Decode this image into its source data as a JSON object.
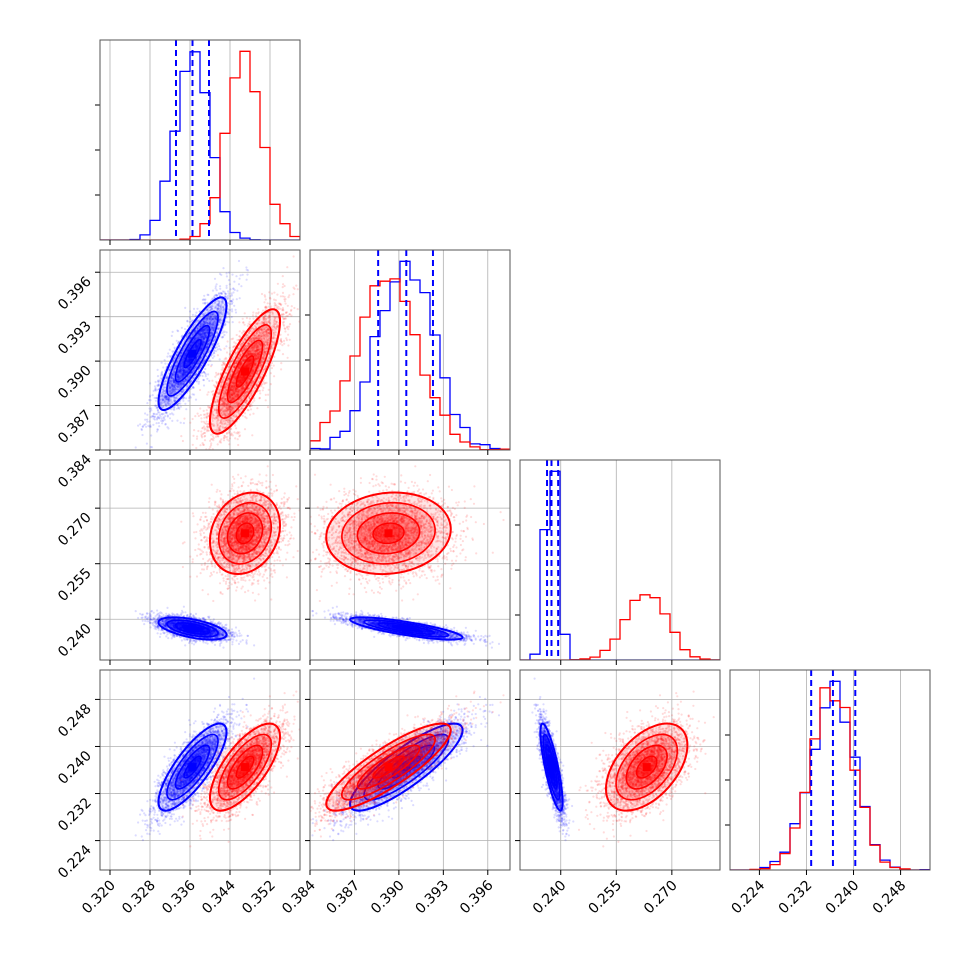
{
  "chart_data": {
    "type": "corner",
    "title": "",
    "grid": true,
    "legend": "none",
    "colors": {
      "series_a": "#0000ff",
      "series_b": "#ff0000"
    },
    "parameters": [
      {
        "range": [
          0.318,
          0.358
        ],
        "ticks": [
          0.32,
          0.328,
          0.336,
          0.344,
          0.352
        ],
        "tick_labels": [
          "0.320",
          "0.328",
          "0.336",
          "0.344",
          "0.352"
        ]
      },
      {
        "range": [
          0.384,
          0.3975
        ],
        "ticks": [
          0.384,
          0.387,
          0.39,
          0.393,
          0.396
        ],
        "tick_labels": [
          "0.384",
          "0.387",
          "0.390",
          "0.393",
          "0.396"
        ]
      },
      {
        "range": [
          0.229,
          0.283
        ],
        "ticks": [
          0.24,
          0.255,
          0.27
        ],
        "tick_labels": [
          "0.240",
          "0.255",
          "0.270"
        ]
      },
      {
        "range": [
          0.219,
          0.253
        ],
        "ticks": [
          0.224,
          0.232,
          0.24,
          0.248
        ],
        "tick_labels": [
          "0.224",
          "0.232",
          "0.240",
          "0.248"
        ]
      }
    ],
    "series": [
      {
        "color": "#0000ff",
        "mean": [
          0.3365,
          0.3905,
          0.2375,
          0.2365
        ],
        "sd": [
          0.0034,
          0.0019,
          0.0015,
          0.0037
        ],
        "corr": [
          [
            1,
            0.85,
            -0.55,
            0.8
          ],
          [
            0.85,
            1,
            -0.8,
            0.85
          ],
          [
            -0.55,
            -0.8,
            1,
            -0.8
          ],
          [
            0.8,
            0.85,
            -0.8,
            1
          ]
        ],
        "quantiles": [
          [
            0.3332,
            0.3365,
            0.3398
          ],
          [
            0.3886,
            0.3905,
            0.3923
          ],
          [
            0.2363,
            0.2375,
            0.2393
          ],
          [
            0.2328,
            0.2365,
            0.2403
          ]
        ]
      },
      {
        "color": "#ff0000",
        "mean": [
          0.347,
          0.3893,
          0.2632,
          0.2365
        ],
        "sd": [
          0.0035,
          0.0021,
          0.0055,
          0.0037
        ],
        "corr": [
          [
            1,
            0.8,
            0.2,
            0.7
          ],
          [
            0.8,
            1,
            0.1,
            0.85
          ],
          [
            0.2,
            0.1,
            1,
            0.5
          ],
          [
            0.7,
            0.85,
            0.5,
            1
          ]
        ],
        "quantiles": []
      }
    ]
  }
}
